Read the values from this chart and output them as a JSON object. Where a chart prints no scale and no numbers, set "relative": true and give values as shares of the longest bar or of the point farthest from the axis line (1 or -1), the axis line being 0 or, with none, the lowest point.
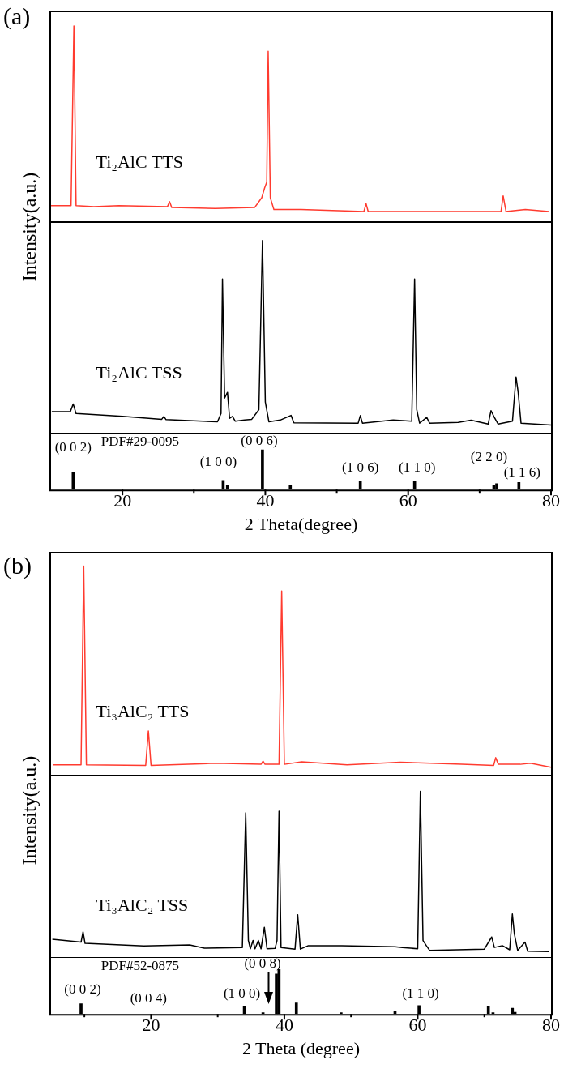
{
  "chart_data": [
    {
      "type": "line",
      "title": "(a)",
      "relative": true,
      "xlim": [
        10,
        80
      ],
      "tick_labels": false,
      "marker": "none",
      "x": [
        10,
        12.8,
        13.2,
        13.5,
        16,
        19.5,
        26.3,
        26.6,
        26.9,
        33,
        38.5,
        39.5,
        39.9,
        40.2,
        40.4,
        40.7,
        41.2,
        45,
        53.8,
        54.1,
        54.4,
        60,
        70,
        73.0,
        73.3,
        73.7,
        76.4,
        79.7
      ],
      "series": [
        {
          "name": "Ti₂AlC TTS",
          "color": "#ff3b2f",
          "values": [
            0.08,
            0.08,
            1.0,
            0.08,
            0.075,
            0.08,
            0.075,
            0.1,
            0.07,
            0.065,
            0.07,
            0.12,
            0.17,
            0.2,
            0.87,
            0.12,
            0.06,
            0.06,
            0.05,
            0.09,
            0.05,
            0.05,
            0.05,
            0.05,
            0.13,
            0.05,
            0.06,
            0.05
          ]
        }
      ]
    },
    {
      "type": "line",
      "ylabel": "Intensity(a.u.)",
      "relative": true,
      "xlim": [
        10,
        80
      ],
      "tick_labels": false,
      "marker": "none",
      "x": [
        10.1,
        12.7,
        13.1,
        13.5,
        20,
        25.5,
        25.8,
        26.1,
        33.3,
        33.8,
        34.0,
        34.3,
        34.7,
        35.0,
        35.4,
        35.8,
        37.1,
        38.1,
        39.1,
        39.6,
        40.0,
        40.5,
        42.1,
        43.6,
        44.0,
        53.0,
        53.3,
        53.6,
        57.9,
        60.5,
        60.9,
        61.2,
        61.6,
        62.6,
        63.0,
        67.0,
        68.8,
        71.2,
        71.6,
        72.1,
        72.6,
        74.6,
        75.1,
        75.4,
        75.8,
        80
      ],
      "series": [
        {
          "name": "Ti₂AlC TSS",
          "color": "#000000",
          "values": [
            0.11,
            0.11,
            0.15,
            0.1,
            0.085,
            0.07,
            0.085,
            0.068,
            0.057,
            0.1,
            0.8,
            0.18,
            0.21,
            0.075,
            0.085,
            0.06,
            0.066,
            0.07,
            0.12,
            1.0,
            0.16,
            0.057,
            0.066,
            0.09,
            0.052,
            0.05,
            0.089,
            0.05,
            0.066,
            0.06,
            0.8,
            0.12,
            0.05,
            0.08,
            0.05,
            0.054,
            0.065,
            0.045,
            0.115,
            0.077,
            0.045,
            0.06,
            0.29,
            0.21,
            0.05,
            0.04
          ]
        }
      ]
    },
    {
      "type": "bar",
      "relative": true,
      "xlim": [
        10,
        80
      ],
      "xticks": [
        20,
        {
          "value": 30,
          "label": null
        },
        40,
        {
          "value": 50,
          "label": null
        },
        60,
        {
          "value": 70,
          "label": null
        },
        80
      ],
      "tick_labels": "x",
      "xlabel": "2 Theta(degree)",
      "x": [
        13.1,
        34.1,
        34.7,
        39.6,
        43.5,
        53.3,
        60.9,
        72.0,
        72.4,
        75.5
      ],
      "values": [
        0.44,
        0.23,
        0.12,
        1,
        0.11,
        0.21,
        0.21,
        0.12,
        0.15,
        0.18
      ],
      "color": "#000000",
      "annotations": [
        "PDF#29-0095",
        {
          "text": "(0 0 2)",
          "x": 13.1,
          "y": 0.44
        },
        {
          "text": "(1 0 0)",
          "x": 34.1,
          "y": 0.23
        },
        {
          "text": "(0 0 6)",
          "x": 39.6,
          "y": 1
        },
        {
          "text": "(1 0 6)",
          "x": 53.3,
          "y": 0.21
        },
        {
          "text": "(1 1 0)",
          "x": 60.9,
          "y": 0.21
        },
        {
          "text": "(2 2 0)",
          "x": 72.0,
          "y": 0.12
        },
        {
          "text": "(1 1 6)",
          "x": 75.5,
          "y": 0.18
        }
      ]
    },
    {
      "type": "line",
      "title": "(b)",
      "relative": true,
      "xlim": [
        5,
        80
      ],
      "tick_labels": false,
      "marker": "none",
      "x": [
        5.3,
        9.5,
        9.9,
        10.3,
        19.2,
        19.6,
        20.0,
        29.6,
        36.5,
        36.8,
        37.1,
        39.2,
        39.6,
        40.0,
        42.6,
        49.4,
        57.4,
        66.6,
        71.4,
        71.7,
        72.1,
        75.4,
        76.9,
        80
      ],
      "series": [
        {
          "name": "Ti₃AlC₂ TTS",
          "color": "#ff3b2f",
          "values": [
            0.048,
            0.048,
            1.0,
            0.048,
            0.045,
            0.21,
            0.045,
            0.055,
            0.05,
            0.065,
            0.05,
            0.05,
            0.88,
            0.05,
            0.062,
            0.048,
            0.06,
            0.05,
            0.045,
            0.082,
            0.05,
            0.05,
            0.055,
            0.036
          ]
        }
      ]
    },
    {
      "type": "line",
      "ylabel": "Intensity(a.u.)",
      "relative": true,
      "xlim": [
        5,
        80
      ],
      "tick_labels": false,
      "marker": "none",
      "x": [
        5.2,
        9.5,
        9.8,
        10.1,
        18.9,
        25.8,
        28,
        33.7,
        34.2,
        34.6,
        34.9,
        35.3,
        35.6,
        36.1,
        36.5,
        37.0,
        37.4,
        38.6,
        38.9,
        39.2,
        39.5,
        41.6,
        42.0,
        42.4,
        43.6,
        48.6,
        56.6,
        57.7,
        60.0,
        60.4,
        60.8,
        61.3,
        61.8,
        70.0,
        71.1,
        71.5,
        72.7,
        73.8,
        74.2,
        74.5,
        75.0,
        76.1,
        76.5,
        79.7
      ],
      "series": [
        {
          "name": "Ti₃AlC₂ TSS",
          "color": "#000000",
          "values": [
            0.108,
            0.09,
            0.152,
            0.083,
            0.067,
            0.073,
            0.054,
            0.058,
            0.87,
            0.1,
            0.05,
            0.1,
            0.05,
            0.1,
            0.05,
            0.18,
            0.05,
            0.052,
            0.1,
            0.88,
            0.058,
            0.048,
            0.256,
            0.048,
            0.069,
            0.069,
            0.062,
            0.058,
            0.05,
            1.0,
            0.1,
            0.069,
            0.04,
            0.048,
            0.121,
            0.058,
            0.069,
            0.044,
            0.26,
            0.14,
            0.04,
            0.09,
            0.035,
            0.033
          ]
        }
      ]
    },
    {
      "type": "bar",
      "relative": true,
      "xlim": [
        5,
        80
      ],
      "xticks": [
        {
          "value": 10,
          "label": null
        },
        20,
        {
          "value": 30,
          "label": null
        },
        40,
        {
          "value": 50,
          "label": null
        },
        60,
        {
          "value": 70,
          "label": null
        },
        80
      ],
      "tick_labels": "x",
      "xlabel": "2 Theta (degree)",
      "x": [
        9.5,
        34.0,
        36.8,
        38.8,
        39.2,
        41.8,
        48.5,
        56.6,
        60.2,
        70.6,
        71.3,
        74.2,
        74.6
      ],
      "values": [
        0.23,
        0.17,
        0.03,
        0.9,
        1,
        0.25,
        0.03,
        0.07,
        0.19,
        0.17,
        0.03,
        0.13,
        0.04
      ],
      "color": "#000000",
      "annotations": [
        "PDF#52-0875",
        {
          "text": "(0 0 2)",
          "x": 9.5,
          "y": 0.23
        },
        "(0 0 4)",
        {
          "text": "(1 0 0)",
          "x": 34.0,
          "y": 0.17
        },
        {
          "text": "(0 0 8)",
          "x": 38.8,
          "y": 0.9
        },
        {
          "text": "(1 1 0)",
          "x": 60.2,
          "y": 0.19
        }
      ]
    }
  ]
}
